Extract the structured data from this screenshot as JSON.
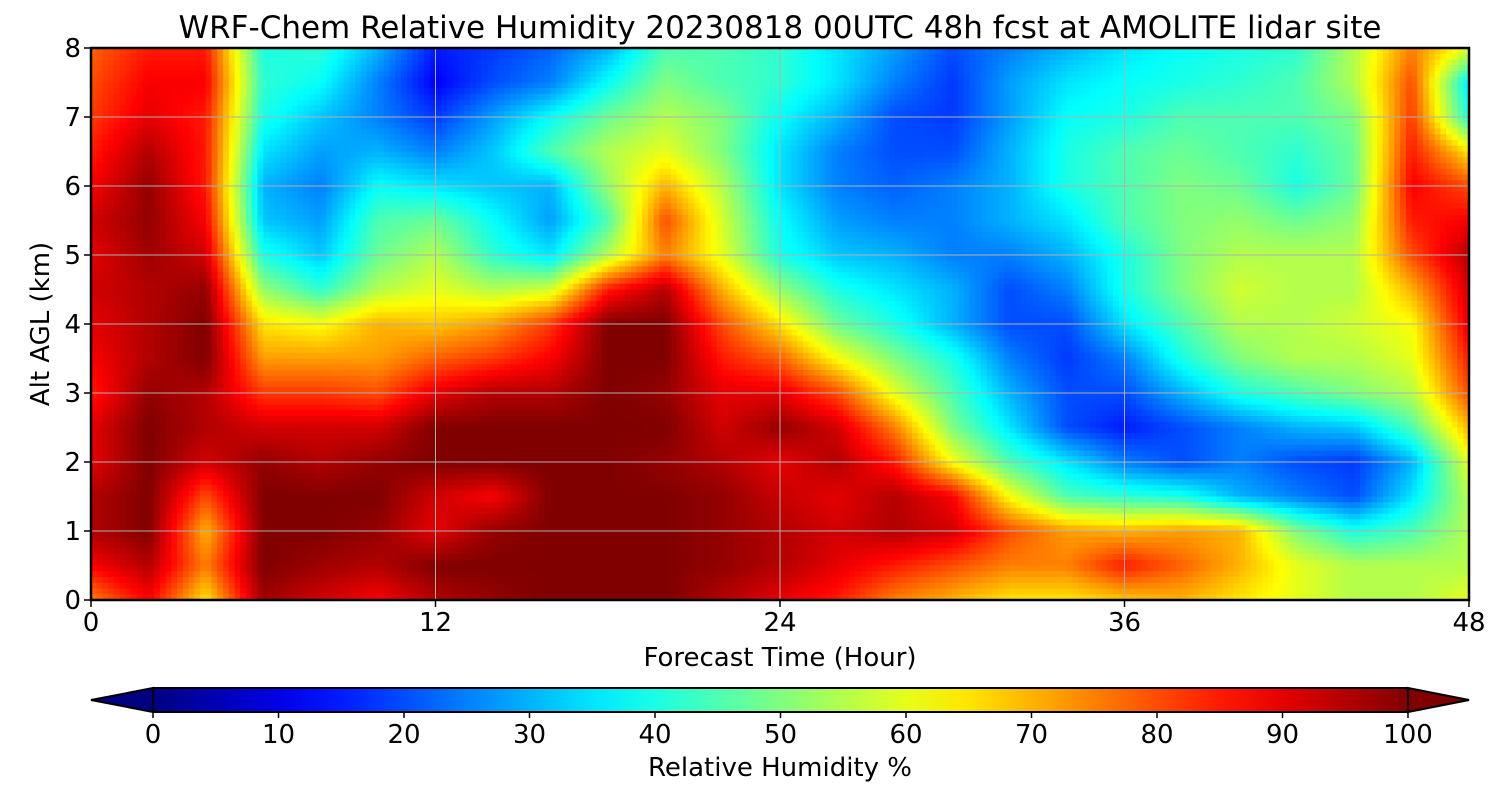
{
  "chart_data": {
    "type": "heatmap",
    "title": "WRF-Chem Relative Humidity 20230818 00UTC 48h fcst at AMOLITE lidar site",
    "xlabel": "Forecast Time (Hour)",
    "ylabel": "Alt AGL (km)",
    "xlim": [
      0,
      48
    ],
    "ylim": [
      0,
      8
    ],
    "x_ticks": [
      0,
      12,
      24,
      36,
      48
    ],
    "y_ticks": [
      0,
      1,
      2,
      3,
      4,
      5,
      6,
      7,
      8
    ],
    "grid": true,
    "colorbar": {
      "label": "Relative Humidity %",
      "orientation": "horizontal",
      "position": "bottom",
      "ticks": [
        0,
        10,
        20,
        30,
        40,
        50,
        60,
        70,
        80,
        90,
        100
      ],
      "range": [
        0,
        100
      ],
      "extend": "both",
      "colormap": "jet"
    },
    "x": [
      0,
      2,
      4,
      6,
      8,
      10,
      12,
      14,
      16,
      18,
      20,
      22,
      24,
      26,
      28,
      30,
      32,
      34,
      36,
      38,
      40,
      42,
      44,
      46,
      48
    ],
    "y": [
      0,
      0.5,
      1,
      1.5,
      2,
      2.5,
      3,
      3.5,
      4,
      4.5,
      5,
      5.5,
      6,
      6.5,
      7,
      7.5,
      8
    ],
    "values": [
      [
        75,
        88,
        65,
        97,
        92,
        88,
        95,
        98,
        100,
        100,
        100,
        95,
        90,
        85,
        75,
        70,
        65,
        65,
        68,
        70,
        65,
        60,
        55,
        55,
        60
      ],
      [
        88,
        95,
        75,
        100,
        97,
        95,
        100,
        100,
        100,
        100,
        100,
        98,
        95,
        90,
        85,
        80,
        75,
        75,
        85,
        78,
        70,
        60,
        55,
        55,
        55
      ],
      [
        95,
        100,
        70,
        100,
        100,
        98,
        90,
        98,
        100,
        100,
        100,
        98,
        95,
        92,
        95,
        92,
        80,
        72,
        70,
        72,
        70,
        50,
        40,
        45,
        55
      ],
      [
        95,
        100,
        80,
        100,
        100,
        100,
        92,
        88,
        100,
        100,
        100,
        98,
        93,
        90,
        95,
        88,
        62,
        45,
        42,
        40,
        30,
        25,
        20,
        35,
        55
      ],
      [
        90,
        100,
        92,
        98,
        95,
        98,
        100,
        100,
        100,
        100,
        98,
        95,
        90,
        95,
        85,
        62,
        45,
        35,
        25,
        20,
        25,
        20,
        18,
        30,
        60
      ],
      [
        90,
        100,
        95,
        92,
        92,
        92,
        100,
        100,
        100,
        100,
        100,
        92,
        98,
        92,
        75,
        50,
        35,
        20,
        15,
        20,
        25,
        30,
        32,
        45,
        70
      ],
      [
        85,
        98,
        95,
        82,
        82,
        80,
        90,
        95,
        95,
        100,
        98,
        90,
        90,
        80,
        60,
        45,
        30,
        20,
        20,
        30,
        40,
        45,
        50,
        55,
        80
      ],
      [
        88,
        95,
        100,
        72,
        72,
        72,
        78,
        82,
        88,
        100,
        100,
        85,
        78,
        62,
        50,
        40,
        25,
        18,
        25,
        40,
        50,
        55,
        55,
        60,
        85
      ],
      [
        90,
        95,
        100,
        65,
        62,
        70,
        68,
        72,
        82,
        100,
        100,
        80,
        65,
        48,
        40,
        30,
        20,
        20,
        35,
        45,
        55,
        55,
        58,
        62,
        90
      ],
      [
        92,
        95,
        98,
        52,
        42,
        55,
        60,
        55,
        58,
        85,
        95,
        70,
        52,
        40,
        35,
        30,
        20,
        25,
        40,
        50,
        58,
        55,
        55,
        70,
        92
      ],
      [
        90,
        97,
        92,
        40,
        32,
        48,
        55,
        42,
        35,
        55,
        75,
        60,
        40,
        32,
        30,
        25,
        25,
        30,
        40,
        50,
        55,
        55,
        55,
        80,
        95
      ],
      [
        92,
        98,
        88,
        32,
        28,
        45,
        48,
        38,
        28,
        45,
        80,
        58,
        38,
        28,
        25,
        25,
        30,
        35,
        45,
        50,
        52,
        48,
        52,
        85,
        88
      ],
      [
        88,
        98,
        85,
        30,
        25,
        38,
        35,
        32,
        30,
        52,
        70,
        55,
        35,
        25,
        22,
        25,
        30,
        40,
        45,
        50,
        48,
        40,
        48,
        88,
        80
      ],
      [
        85,
        95,
        85,
        35,
        28,
        30,
        25,
        32,
        45,
        55,
        60,
        50,
        35,
        25,
        20,
        20,
        30,
        40,
        45,
        48,
        45,
        42,
        48,
        85,
        65
      ],
      [
        82,
        90,
        85,
        40,
        32,
        25,
        18,
        28,
        38,
        48,
        55,
        50,
        38,
        30,
        20,
        18,
        28,
        38,
        40,
        45,
        45,
        45,
        50,
        82,
        40
      ],
      [
        80,
        88,
        88,
        42,
        38,
        25,
        12,
        20,
        25,
        38,
        50,
        45,
        42,
        35,
        25,
        18,
        28,
        35,
        38,
        40,
        42,
        45,
        55,
        80,
        35
      ],
      [
        78,
        85,
        85,
        40,
        42,
        30,
        15,
        18,
        22,
        30,
        45,
        45,
        42,
        35,
        28,
        20,
        25,
        30,
        35,
        38,
        40,
        42,
        55,
        75,
        60
      ]
    ]
  }
}
